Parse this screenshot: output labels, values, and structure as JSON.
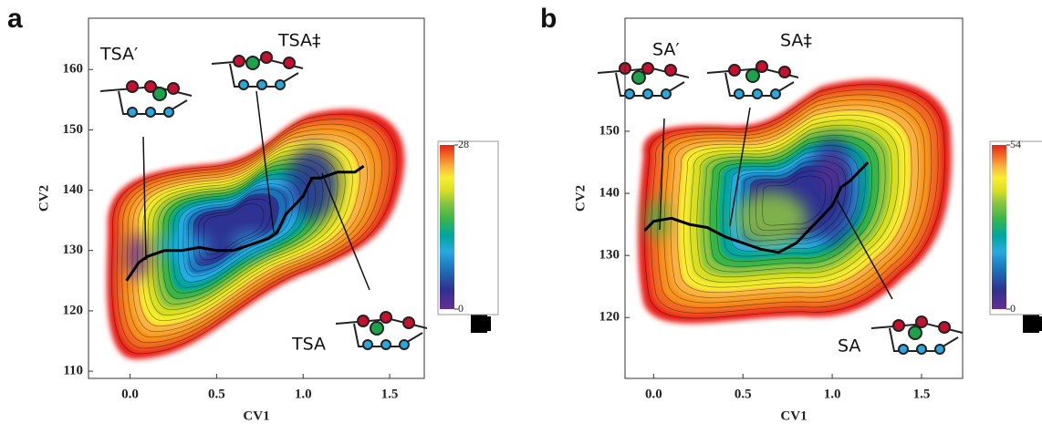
{
  "chart_data": [
    {
      "type": "contour",
      "panel_label": "a",
      "xlabel": "CV1",
      "ylabel": "CV2",
      "xlim": [
        -0.24,
        1.7
      ],
      "ylim": [
        108.8,
        168.5
      ],
      "xticks": [
        {
          "value": 0,
          "label": "0.0"
        },
        0.5,
        {
          "value": 1,
          "label": "1.0"
        },
        1.5
      ],
      "yticks": [
        110,
        120,
        130,
        140,
        150,
        160
      ],
      "x": [
        -0.02,
        0.05,
        0.1,
        0.2,
        0.3,
        0.4,
        0.5,
        0.6,
        0.7,
        0.8,
        0.85,
        0.9,
        1.0,
        1.05,
        1.1,
        1.2,
        1.3,
        1.35
      ],
      "y": [
        125,
        128,
        129,
        130,
        130,
        130.5,
        130,
        130,
        131,
        132,
        133,
        136,
        139,
        142,
        142,
        143,
        143,
        144
      ],
      "line_color": "#000000",
      "colorbar": {
        "ylim": [
          0,
          28
        ],
        "yticks": [
          0,
          28
        ]
      },
      "annotations": [
        "TSA′",
        "TSA‡",
        "TSA"
      ]
    },
    {
      "type": "contour",
      "panel_label": "b",
      "xlabel": "CV1",
      "ylabel": "CV2",
      "xlim": [
        -0.16,
        1.73
      ],
      "ylim": [
        110.2,
        168.2
      ],
      "xticks": [
        {
          "value": 0,
          "label": "0.0"
        },
        0.5,
        {
          "value": 1,
          "label": "1.0"
        },
        1.5
      ],
      "yticks": [
        120,
        130,
        140,
        150
      ],
      "x": [
        -0.05,
        0,
        0.1,
        0.2,
        0.3,
        0.4,
        0.5,
        0.6,
        0.7,
        0.8,
        0.9,
        1.0,
        1.05,
        1.1,
        1.2
      ],
      "y": [
        134,
        135.5,
        136,
        135,
        134.5,
        133,
        132,
        131,
        130.5,
        132,
        135,
        138,
        141,
        142,
        145
      ],
      "line_color": "#000000",
      "colorbar": {
        "ylim": [
          0,
          54
        ],
        "yticks": [
          0,
          54
        ]
      },
      "annotations": [
        "SA′",
        "SA‡",
        "SA"
      ]
    }
  ]
}
